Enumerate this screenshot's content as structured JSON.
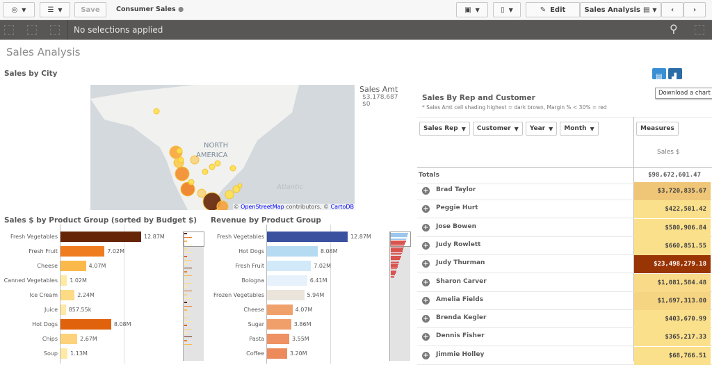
{
  "toolbar": {
    "save": "Save",
    "app_title": "Consumer Sales",
    "edit": "Edit",
    "sheet": "Sales Analysis"
  },
  "selections": {
    "text": "No selections applied"
  },
  "sheet_title": "Sales Analysis",
  "map": {
    "title": "Sales by City",
    "label": "NORTH\nAMERICA",
    "ocean": "Atlantic",
    "attr_prefix": "©",
    "osm": "OpenStreetMap",
    "attr_mid": "contributors, ©",
    "carto": "CartoDB",
    "legend_title": "Sales Amt",
    "legend_max": "$3,178,687",
    "legend_min": "$0"
  },
  "chart_data": [
    {
      "type": "bar",
      "title": "Sales $ by Product Group (sorted by Budget $)",
      "orientation": "horizontal",
      "categories": [
        "Fresh Vegetables",
        "Fresh Fruit",
        "Cheese",
        "Canned Vegetables",
        "Ice Cream",
        "Juice",
        "Hot Dogs",
        "Chips",
        "Soup"
      ],
      "values": [
        12870000,
        7020000,
        4070000,
        1020000,
        2240000,
        857550,
        8080000,
        2670000,
        1130000
      ],
      "labels": [
        "12.87M",
        "7.02M",
        "4.07M",
        "1.02M",
        "2.24M",
        "857.55k",
        "8.08M",
        "2.67M",
        "1.13M"
      ],
      "colors": [
        "#662506",
        "#ef7d1f",
        "#fbb94c",
        "#feeaa5",
        "#fddb86",
        "#fee9a6",
        "#e0620d",
        "#fdd27a",
        "#feeaa5"
      ]
    },
    {
      "type": "bar",
      "title": "Revenue by Product Group",
      "orientation": "horizontal",
      "categories": [
        "Fresh Vegetables",
        "Hot Dogs",
        "Fresh Fruit",
        "Bologna",
        "Frozen Vegetables",
        "Cheese",
        "Sugar",
        "Pasta",
        "Coffee"
      ],
      "values": [
        12870000,
        8080000,
        7020000,
        6410000,
        5940000,
        4070000,
        3860000,
        3550000,
        3200000
      ],
      "labels": [
        "12.87M",
        "8.08M",
        "7.02M",
        "6.41M",
        "5.94M",
        "4.07M",
        "3.86M",
        "3.55M",
        "3.20M"
      ],
      "colors": [
        "#3a51a0",
        "#b5dbf3",
        "#d2e9f9",
        "#e6f1fb",
        "#ebe4da",
        "#f0a06a",
        "#f09e6a",
        "#ee9263",
        "#ec8a5c"
      ]
    }
  ],
  "table": {
    "title": "Sales By Rep and Customer",
    "subtitle": "* Sales Amt cell shading highest = dark brown, Margin % < 30% = red",
    "dims": [
      "Sales Rep",
      "Customer",
      "Year",
      "Month"
    ],
    "measures": "Measures",
    "col": "Sales $",
    "totals_label": "Totals",
    "totals": "$98,672,601.47",
    "rows": [
      {
        "name": "Brad Taylor",
        "value": "$3,720,835.67",
        "bg": "#efc678",
        "fg": "#404040"
      },
      {
        "name": "Peggie Hurt",
        "value": "$422,501.42",
        "bg": "#fbe08c",
        "fg": "#404040"
      },
      {
        "name": "Jose Bowen",
        "value": "$580,906.84",
        "bg": "#fbe08c",
        "fg": "#404040"
      },
      {
        "name": "Judy Rowlett",
        "value": "$660,851.55",
        "bg": "#fbe08c",
        "fg": "#404040"
      },
      {
        "name": "Judy Thurman",
        "value": "$23,498,279.18",
        "bg": "#993404",
        "fg": "#ffffff"
      },
      {
        "name": "Sharon Carver",
        "value": "$1,081,584.48",
        "bg": "#f8da88",
        "fg": "#404040"
      },
      {
        "name": "Amelia Fields",
        "value": "$1,697,313.00",
        "bg": "#f5d482",
        "fg": "#404040"
      },
      {
        "name": "Brenda Kegler",
        "value": "$403,670.99",
        "bg": "#fbe08c",
        "fg": "#404040"
      },
      {
        "name": "Dennis Fisher",
        "value": "$365,217.33",
        "bg": "#fbe08c",
        "fg": "#404040"
      },
      {
        "name": "Jimmie Holley",
        "value": "$68,766.51",
        "bg": "#fbe08c",
        "fg": "#404040"
      }
    ]
  },
  "tooltip": "Download a chart"
}
